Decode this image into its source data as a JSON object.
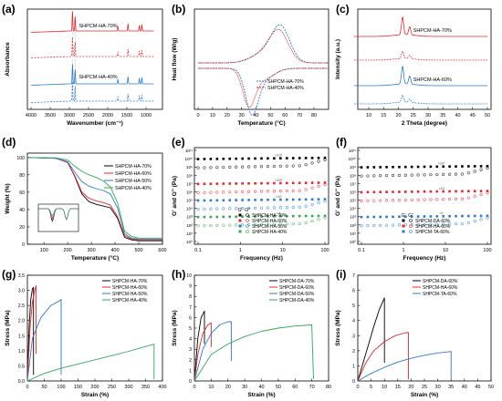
{
  "colors": {
    "black": "#000000",
    "red": "#e8262b",
    "blue": "#2a7bd1",
    "green": "#33a853",
    "gray": "#9a9a9a"
  },
  "chart_data": [
    {
      "panel": "(a)",
      "type": "line",
      "xlabel": "Wavenumber (cm⁻¹)",
      "ylabel": "Absorbance",
      "xticks": [
        "4000",
        "3500",
        "3000",
        "2500",
        "2000",
        "1500",
        "1000"
      ],
      "xlim": [
        4000,
        750
      ],
      "series": [
        {
          "name": "SHPCM-HA-70%",
          "style": "solid",
          "color": "red"
        },
        {
          "name": "",
          "style": "dashed",
          "color": "red"
        },
        {
          "name": "",
          "style": "solid",
          "color": "blue"
        },
        {
          "name": "SHPCM-HA-40%",
          "style": "dashed",
          "color": "blue"
        }
      ],
      "annotations": [
        "SHPCM-HA-70%",
        "SHPCM-HA-40%"
      ]
    },
    {
      "panel": "(b)",
      "type": "line",
      "xlabel": "Temperature (°C)",
      "ylabel": "Heat flow (W/g)",
      "xlim": [
        0,
        90
      ],
      "xticks": [
        "0",
        "10",
        "20",
        "30",
        "40",
        "50",
        "60",
        "70",
        "80"
      ],
      "legend": [
        "SHPCM-HA-70%",
        "SHPCM-HA-40%"
      ],
      "series": [
        {
          "name": "SHPCM-HA-70%",
          "color": "blue",
          "heating_peak_temp": 57,
          "cooling_peak_temp": 37
        },
        {
          "name": "SHPCM-HA-40%",
          "color": "red",
          "heating_peak_temp": 56,
          "cooling_peak_temp": 35
        }
      ]
    },
    {
      "panel": "(c)",
      "type": "line",
      "xlabel": "2 Theta (degree)",
      "ylabel": "Intensity (a.u.)",
      "xlim": [
        5,
        50
      ],
      "xticks": [
        "10",
        "15",
        "20",
        "25",
        "30",
        "35",
        "40",
        "45",
        "50"
      ],
      "series": [
        {
          "name": "SHPCM-HA-70%",
          "color": "red",
          "peaks": [
            21.4,
            23.8
          ]
        },
        {
          "name": "SHPCM-HA-60%",
          "color": "blue",
          "peaks": [
            21.4,
            23.8
          ]
        }
      ]
    },
    {
      "panel": "(d)",
      "type": "line",
      "xlabel": "Temperature (°C)",
      "ylabel": "Weight (%)",
      "xlim": [
        30,
        600
      ],
      "ylim": [
        0,
        105
      ],
      "xticks": [
        "100",
        "200",
        "300",
        "400",
        "500",
        "600"
      ],
      "yticks": [
        "0",
        "20",
        "40",
        "60",
        "80",
        "100"
      ],
      "series": [
        {
          "name": "SHPCM-HA-70%",
          "color": "black",
          "x": [
            30,
            150,
            200,
            230,
            260,
            290,
            320,
            350,
            380,
            410,
            440,
            470,
            500,
            600
          ],
          "y": [
            100,
            99,
            95,
            78,
            58,
            49,
            46,
            44,
            42,
            30,
            8,
            5,
            4,
            4
          ]
        },
        {
          "name": "SHPCM-HA-60%",
          "color": "red",
          "x": [
            30,
            150,
            200,
            230,
            260,
            290,
            320,
            350,
            380,
            410,
            440,
            470,
            500,
            600
          ],
          "y": [
            100,
            99,
            94,
            79,
            60,
            53,
            50,
            48,
            45,
            32,
            10,
            6,
            5,
            5
          ]
        },
        {
          "name": "SHPCM-HA-50%",
          "color": "blue",
          "x": [
            30,
            150,
            200,
            230,
            260,
            290,
            320,
            350,
            380,
            410,
            440,
            470,
            500,
            600
          ],
          "y": [
            100,
            99,
            95,
            83,
            72,
            67,
            64,
            62,
            58,
            42,
            12,
            7,
            6,
            6
          ]
        },
        {
          "name": "SHPCM-HA-40%",
          "color": "green",
          "x": [
            30,
            150,
            200,
            230,
            260,
            290,
            320,
            350,
            380,
            410,
            440,
            470,
            500,
            600
          ],
          "y": [
            100,
            99.5,
            97,
            90,
            84,
            80,
            77,
            73,
            66,
            48,
            15,
            9,
            7,
            7
          ]
        }
      ]
    },
    {
      "panel": "(e)",
      "type": "scatter",
      "xlabel": "Frequency (Hz)",
      "ylabel": "G' and G'' (Pa)",
      "xscale": "log",
      "xlim": [
        0.1,
        100
      ],
      "xticks": [
        "0.1",
        "1",
        "10",
        "100"
      ],
      "yticks": [
        "10⁰",
        "10¹",
        "10²",
        "10³",
        "10⁴",
        "10⁵",
        "10⁶",
        "10⁷",
        "10⁸",
        "10⁹",
        "10¹⁰",
        "10¹¹"
      ],
      "legend_header": [
        "G'",
        "G''"
      ],
      "series": [
        {
          "name": "SHPCM-HA-70%",
          "color": "black",
          "Gp_level": 10,
          "Gpp_level": 9
        },
        {
          "name": "SHPCM-HA-60%",
          "color": "red",
          "Gp_level": 7,
          "Gpp_level": 6
        },
        {
          "name": "SHPCM-HA-50%",
          "color": "blue",
          "Gp_level": 5,
          "Gpp_level": 4
        },
        {
          "name": "SHPCM-HA-40%",
          "color": "green",
          "Gp_level": 3,
          "Gpp_level": 2
        }
      ],
      "level_labels": [
        "×10³",
        "×10²",
        "×10",
        "×1"
      ]
    },
    {
      "panel": "(f)",
      "type": "scatter",
      "xlabel": "Frequency (Hz)",
      "ylabel": "G' and G'' (Pa)",
      "xscale": "log",
      "xlim": [
        0.1,
        100
      ],
      "xticks": [
        "0.1",
        "1",
        "10",
        "100"
      ],
      "yticks": [
        "10⁰",
        "10¹",
        "10²",
        "10³",
        "10⁴",
        "10⁵",
        "10⁶",
        "10⁷",
        "10⁸",
        "10⁹",
        "10¹⁰",
        "10¹¹"
      ],
      "legend_header": [
        "G'",
        "G''"
      ],
      "series": [
        {
          "name": "SHPCM-DA-60%",
          "color": "black",
          "Gp_level": 9,
          "Gpp_level": 8
        },
        {
          "name": "SHPCM-HA-60%",
          "color": "red",
          "Gp_level": 6,
          "Gpp_level": 5
        },
        {
          "name": "SHPCM-TA-60%",
          "color": "blue",
          "Gp_level": 3,
          "Gpp_level": 2
        }
      ],
      "level_labels": [
        "×10²",
        "×10",
        "×1"
      ]
    },
    {
      "panel": "(g)",
      "type": "line",
      "xlabel": "Strain (%)",
      "ylabel": "Stress (MPa)",
      "xlim": [
        0,
        400
      ],
      "ylim": [
        0,
        3.5
      ],
      "xticks": [
        "0",
        "50",
        "100",
        "150",
        "200",
        "250",
        "300",
        "350",
        "400"
      ],
      "yticks": [
        "0.0",
        "0.5",
        "1.0",
        "1.5",
        "2.0",
        "2.5",
        "3.0",
        "3.5"
      ],
      "series": [
        {
          "name": "SHPCM-HA-70%",
          "color": "black",
          "x": [
            0,
            5,
            10,
            15,
            18,
            18
          ],
          "y": [
            0,
            1.8,
            2.7,
            3.05,
            3.1,
            0.2
          ]
        },
        {
          "name": "SHPCM-HA-60%",
          "color": "red",
          "x": [
            0,
            8,
            15,
            22,
            26,
            26
          ],
          "y": [
            0,
            1.8,
            2.6,
            3.0,
            3.15,
            0.9
          ]
        },
        {
          "name": "SHPCM-HA-50%",
          "color": "blue",
          "x": [
            0,
            15,
            40,
            70,
            95,
            100,
            100
          ],
          "y": [
            0,
            1.4,
            2.1,
            2.5,
            2.65,
            2.7,
            0.2
          ]
        },
        {
          "name": "SHPCM-HA-40%",
          "color": "green",
          "x": [
            0,
            50,
            100,
            150,
            200,
            250,
            300,
            350,
            375,
            375
          ],
          "y": [
            0,
            0.25,
            0.42,
            0.56,
            0.7,
            0.84,
            0.98,
            1.14,
            1.22,
            0.05
          ]
        }
      ]
    },
    {
      "panel": "(h)",
      "type": "line",
      "xlabel": "Strain (%)",
      "ylabel": "Stress (MPa)",
      "xlim": [
        0,
        80
      ],
      "ylim": [
        0,
        10
      ],
      "xticks": [
        "0",
        "10",
        "20",
        "30",
        "40",
        "50",
        "60",
        "70",
        "80"
      ],
      "yticks": [
        "0",
        "1",
        "2",
        "3",
        "4",
        "5",
        "6",
        "7",
        "8",
        "9",
        "10"
      ],
      "series": [
        {
          "name": "SHPCM-DA-70%",
          "color": "black",
          "x": [
            0,
            2,
            4,
            6,
            6
          ],
          "y": [
            0,
            4,
            6,
            6.6,
            3.5
          ]
        },
        {
          "name": "SHPCM-DA-60%",
          "color": "red",
          "x": [
            0,
            2,
            5,
            8,
            10,
            10
          ],
          "y": [
            0,
            2.5,
            4.5,
            5.3,
            5.5,
            3.2
          ]
        },
        {
          "name": "SHPCM-DA-50%",
          "color": "blue",
          "x": [
            0,
            5,
            10,
            15,
            20,
            22,
            22
          ],
          "y": [
            0,
            3,
            4.5,
            5.3,
            5.6,
            5.6,
            1.9
          ]
        },
        {
          "name": "SHPCM-DA-40%",
          "color": "green",
          "x": [
            0,
            10,
            20,
            30,
            40,
            50,
            60,
            70,
            71
          ],
          "y": [
            0,
            2.5,
            3.5,
            4.2,
            4.7,
            5.0,
            5.2,
            5.3,
            0.2
          ]
        }
      ]
    },
    {
      "panel": "(i)",
      "type": "line",
      "xlabel": "Strain (%)",
      "ylabel": "Stress (MPa)",
      "xlim": [
        0,
        50
      ],
      "ylim": [
        0,
        7
      ],
      "xticks": [
        "0",
        "5",
        "10",
        "15",
        "20",
        "25",
        "30",
        "35",
        "40",
        "45",
        "50"
      ],
      "yticks": [
        "0",
        "1",
        "2",
        "3",
        "4",
        "5",
        "6",
        "7"
      ],
      "series": [
        {
          "name": "SHPCM-DA-60%",
          "color": "black",
          "x": [
            0,
            2,
            4,
            6,
            8,
            10,
            10
          ],
          "y": [
            0,
            1.2,
            2.4,
            3.6,
            4.7,
            5.5,
            1.2
          ]
        },
        {
          "name": "SHPCM-HA-60%",
          "color": "red",
          "x": [
            0,
            3,
            6,
            10,
            14,
            18,
            19,
            19
          ],
          "y": [
            0,
            1.2,
            2.0,
            2.6,
            3.0,
            3.2,
            3.2,
            0.1
          ]
        },
        {
          "name": "SHPCM-TA-60%",
          "color": "blue",
          "x": [
            0,
            5,
            10,
            15,
            20,
            25,
            30,
            35,
            35
          ],
          "y": [
            0,
            0.5,
            0.9,
            1.25,
            1.5,
            1.7,
            1.85,
            1.95,
            0.1
          ]
        }
      ]
    }
  ]
}
